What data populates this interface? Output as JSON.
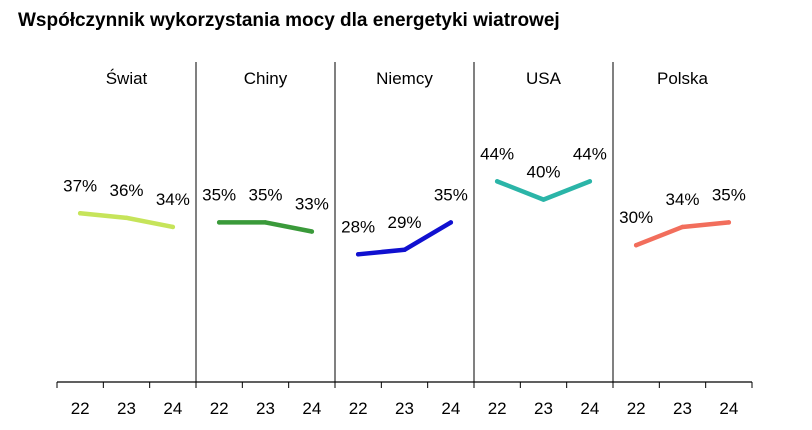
{
  "chart_data": {
    "type": "line",
    "title": "Współczynnik wykorzystania mocy dla energetyki wiatrowej",
    "x": [
      "22",
      "23",
      "24"
    ],
    "ylim": [
      0,
      70
    ],
    "grid": false,
    "panels": [
      {
        "name": "Świat",
        "color": "#c6e45a",
        "values": [
          37,
          36,
          34
        ],
        "labels": [
          "37%",
          "36%",
          "34%"
        ]
      },
      {
        "name": "Chiny",
        "color": "#3a9a3a",
        "values": [
          35,
          35,
          33
        ],
        "labels": [
          "35%",
          "35%",
          "33%"
        ]
      },
      {
        "name": "Niemcy",
        "color": "#1010d0",
        "values": [
          28,
          29,
          35
        ],
        "labels": [
          "28%",
          "29%",
          "35%"
        ]
      },
      {
        "name": "USA",
        "color": "#2bb5a8",
        "values": [
          44,
          40,
          44
        ],
        "labels": [
          "44%",
          "40%",
          "44%"
        ]
      },
      {
        "name": "Polska",
        "color": "#f26e5c",
        "values": [
          30,
          34,
          35
        ],
        "labels": [
          "30%",
          "34%",
          "35%"
        ]
      }
    ]
  }
}
